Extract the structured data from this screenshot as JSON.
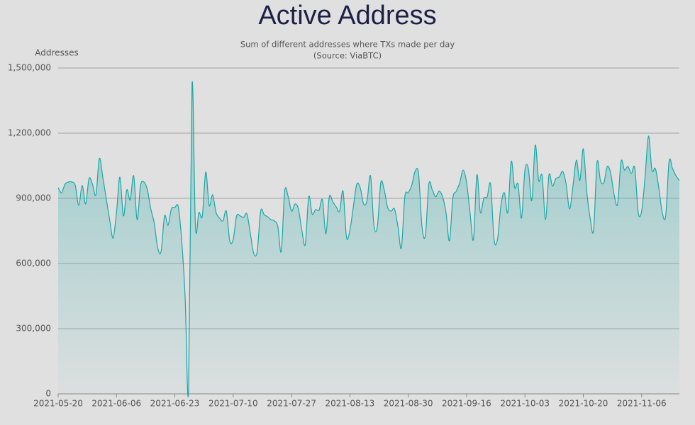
{
  "chart_data": {
    "type": "area",
    "title": "Active Address",
    "subtitle": "Sum of different addresses where TXs made per day",
    "source": "(Source: ViaBTC)",
    "y_label": "Addresses",
    "color": "#1aa7a7",
    "grid": true,
    "xlim": [
      "2021-05-20",
      "2021-11-17"
    ],
    "xticks": [
      "2021-05-20",
      "2021-06-06",
      "2021-06-23",
      "2021-07-10",
      "2021-07-27",
      "2021-08-13",
      "2021-08-30",
      "2021-09-16",
      "2021-10-03",
      "2021-10-20",
      "2021-11-06"
    ],
    "ylim": [
      0,
      1500000
    ],
    "yticks": [
      0,
      {
        "value": 300000,
        "label": "300,000"
      },
      {
        "value": 600000,
        "label": "600,000"
      },
      {
        "value": 900000,
        "label": "900,000"
      },
      {
        "value": 1200000,
        "label": "1,200,000"
      },
      {
        "value": 1500000,
        "label": "1,500,000"
      }
    ],
    "x": [
      "2021-05-20",
      "2021-05-21",
      "2021-05-22",
      "2021-05-23",
      "2021-05-24",
      "2021-05-25",
      "2021-05-26",
      "2021-05-27",
      "2021-05-28",
      "2021-05-29",
      "2021-05-30",
      "2021-05-31",
      "2021-06-01",
      "2021-06-02",
      "2021-06-03",
      "2021-06-04",
      "2021-06-05",
      "2021-06-06",
      "2021-06-07",
      "2021-06-08",
      "2021-06-09",
      "2021-06-10",
      "2021-06-11",
      "2021-06-12",
      "2021-06-13",
      "2021-06-14",
      "2021-06-15",
      "2021-06-16",
      "2021-06-17",
      "2021-06-18",
      "2021-06-19",
      "2021-06-20",
      "2021-06-21",
      "2021-06-22",
      "2021-06-23",
      "2021-06-24",
      "2021-06-25",
      "2021-06-26",
      "2021-06-27",
      "2021-06-28",
      "2021-06-29",
      "2021-06-30",
      "2021-07-01",
      "2021-07-02",
      "2021-07-03",
      "2021-07-04",
      "2021-07-05",
      "2021-07-06",
      "2021-07-07",
      "2021-07-08",
      "2021-07-09",
      "2021-07-10",
      "2021-07-11",
      "2021-07-12",
      "2021-07-13",
      "2021-07-14",
      "2021-07-15",
      "2021-07-16",
      "2021-07-17",
      "2021-07-18",
      "2021-07-19",
      "2021-07-20",
      "2021-07-21",
      "2021-07-22",
      "2021-07-23",
      "2021-07-24",
      "2021-07-25",
      "2021-07-26",
      "2021-07-27",
      "2021-07-28",
      "2021-07-29",
      "2021-07-30",
      "2021-07-31",
      "2021-08-01",
      "2021-08-02",
      "2021-08-03",
      "2021-08-04",
      "2021-08-05",
      "2021-08-06",
      "2021-08-07",
      "2021-08-08",
      "2021-08-09",
      "2021-08-10",
      "2021-08-11",
      "2021-08-12",
      "2021-08-13",
      "2021-08-14",
      "2021-08-15",
      "2021-08-16",
      "2021-08-17",
      "2021-08-18",
      "2021-08-19",
      "2021-08-20",
      "2021-08-21",
      "2021-08-22",
      "2021-08-23",
      "2021-08-24",
      "2021-08-25",
      "2021-08-26",
      "2021-08-27",
      "2021-08-28",
      "2021-08-29",
      "2021-08-30",
      "2021-08-31",
      "2021-09-01",
      "2021-09-02",
      "2021-09-03",
      "2021-09-04",
      "2021-09-05",
      "2021-09-06",
      "2021-09-07",
      "2021-09-08",
      "2021-09-09",
      "2021-09-10",
      "2021-09-11",
      "2021-09-12",
      "2021-09-13",
      "2021-09-14",
      "2021-09-15",
      "2021-09-16",
      "2021-09-17",
      "2021-09-18",
      "2021-09-19",
      "2021-09-20",
      "2021-09-21",
      "2021-09-22",
      "2021-09-23",
      "2021-09-24",
      "2021-09-25",
      "2021-09-26",
      "2021-09-27",
      "2021-09-28",
      "2021-09-29",
      "2021-09-30",
      "2021-10-01",
      "2021-10-02",
      "2021-10-03",
      "2021-10-04",
      "2021-10-05",
      "2021-10-06",
      "2021-10-07",
      "2021-10-08",
      "2021-10-09",
      "2021-10-10",
      "2021-10-11",
      "2021-10-12",
      "2021-10-13",
      "2021-10-14",
      "2021-10-15",
      "2021-10-16",
      "2021-10-17",
      "2021-10-18",
      "2021-10-19",
      "2021-10-20",
      "2021-10-21",
      "2021-10-22",
      "2021-10-23",
      "2021-10-24",
      "2021-10-25",
      "2021-10-26",
      "2021-10-27",
      "2021-10-28",
      "2021-10-29",
      "2021-10-30",
      "2021-10-31",
      "2021-11-01",
      "2021-11-02",
      "2021-11-03",
      "2021-11-04",
      "2021-11-05",
      "2021-11-06",
      "2021-11-07",
      "2021-11-08",
      "2021-11-09",
      "2021-11-10",
      "2021-11-11",
      "2021-11-12",
      "2021-11-13",
      "2021-11-14",
      "2021-11-15",
      "2021-11-16",
      "2021-11-17"
    ],
    "values": [
      949000,
      926000,
      965000,
      975000,
      975000,
      959000,
      867000,
      959000,
      874000,
      991000,
      965000,
      916000,
      1083000,
      998000,
      900000,
      802000,
      717000,
      835000,
      998000,
      819000,
      939000,
      893000,
      1004000,
      802000,
      959000,
      975000,
      939000,
      851000,
      786000,
      672000,
      656000,
      819000,
      776000,
      851000,
      858000,
      861000,
      704000,
      443000,
      20000,
      1422000,
      770000,
      835000,
      819000,
      1021000,
      867000,
      916000,
      835000,
      809000,
      796000,
      841000,
      704000,
      711000,
      819000,
      819000,
      812000,
      828000,
      737000,
      646000,
      656000,
      841000,
      825000,
      815000,
      802000,
      796000,
      770000,
      656000,
      933000,
      910000,
      841000,
      874000,
      851000,
      753000,
      688000,
      907000,
      828000,
      848000,
      845000,
      893000,
      737000,
      907000,
      884000,
      861000,
      841000,
      933000,
      721000,
      753000,
      861000,
      965000,
      949000,
      874000,
      890000,
      1004000,
      776000,
      770000,
      972000,
      939000,
      858000,
      841000,
      851000,
      770000,
      672000,
      907000,
      926000,
      959000,
      1024000,
      1014000,
      770000,
      730000,
      965000,
      939000,
      907000,
      933000,
      907000,
      835000,
      704000,
      900000,
      933000,
      972000,
      1030000,
      972000,
      835000,
      711000,
      1008000,
      835000,
      900000,
      907000,
      965000,
      711000,
      711000,
      867000,
      926000,
      835000,
      1070000,
      949000,
      965000,
      809000,
      1030000,
      1037000,
      890000,
      1145000,
      982000,
      1004000,
      802000,
      1008000,
      956000,
      991000,
      998000,
      1024000,
      965000,
      851000,
      959000,
      1076000,
      982000,
      1128000,
      933000,
      809000,
      753000,
      1066000,
      982000,
      972000,
      1047000,
      1014000,
      916000,
      874000,
      1070000,
      1030000,
      1047000,
      1014000,
      1040000,
      835000,
      841000,
      998000,
      1187000,
      1030000,
      1037000,
      949000,
      835000,
      819000,
      1070000,
      1037000,
      1004000,
      982000
    ]
  }
}
